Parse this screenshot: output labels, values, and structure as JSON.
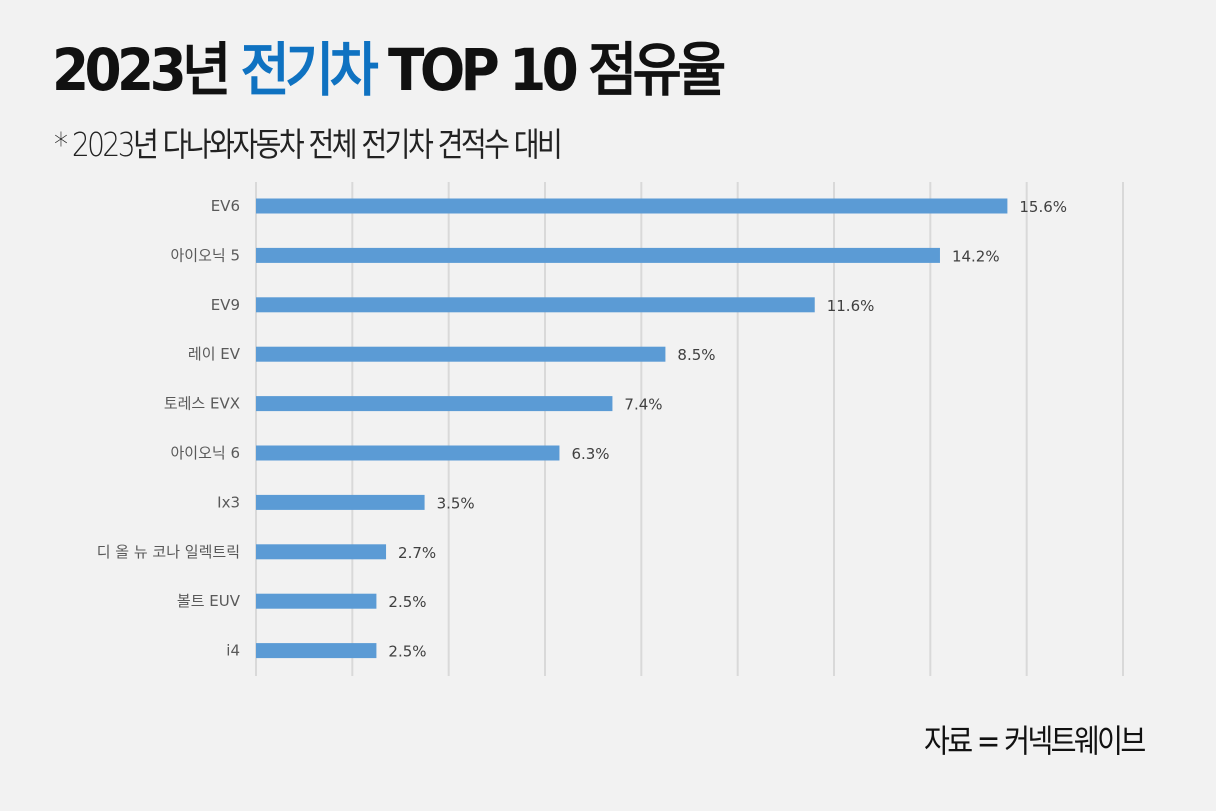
{
  "title": {
    "part1": "2023년 ",
    "highlight": "전기차",
    "part2": " TOP 10 점유율"
  },
  "subtitle": "* 2023년 다나와자동차 전체 전기차 견적수 대비",
  "source": "자료 = 커넥트웨이브",
  "colors": {
    "bar": "#5b9bd5",
    "highlight": "#0f72c1",
    "grid": "#d9d9d9"
  },
  "chart_data": {
    "type": "bar",
    "orientation": "horizontal",
    "categories": [
      "EV6",
      "아이오닉 5",
      "EV9",
      "레이 EV",
      "토레스 EVX",
      "아이오닉 6",
      "Ix3",
      "디 올 뉴 코나 일렉트릭",
      "볼트 EUV",
      "i4"
    ],
    "values": [
      15.6,
      14.2,
      11.6,
      8.5,
      7.4,
      6.3,
      3.5,
      2.7,
      2.5,
      2.5
    ],
    "labels": [
      "15.6%",
      "14.2%",
      "11.6%",
      "8.5%",
      "7.4%",
      "6.3%",
      "3.5%",
      "2.7%",
      "2.5%",
      "2.5%"
    ],
    "xlim": [
      0,
      18
    ],
    "grid_step": 2,
    "grid": true,
    "xlabel": "",
    "ylabel": ""
  }
}
